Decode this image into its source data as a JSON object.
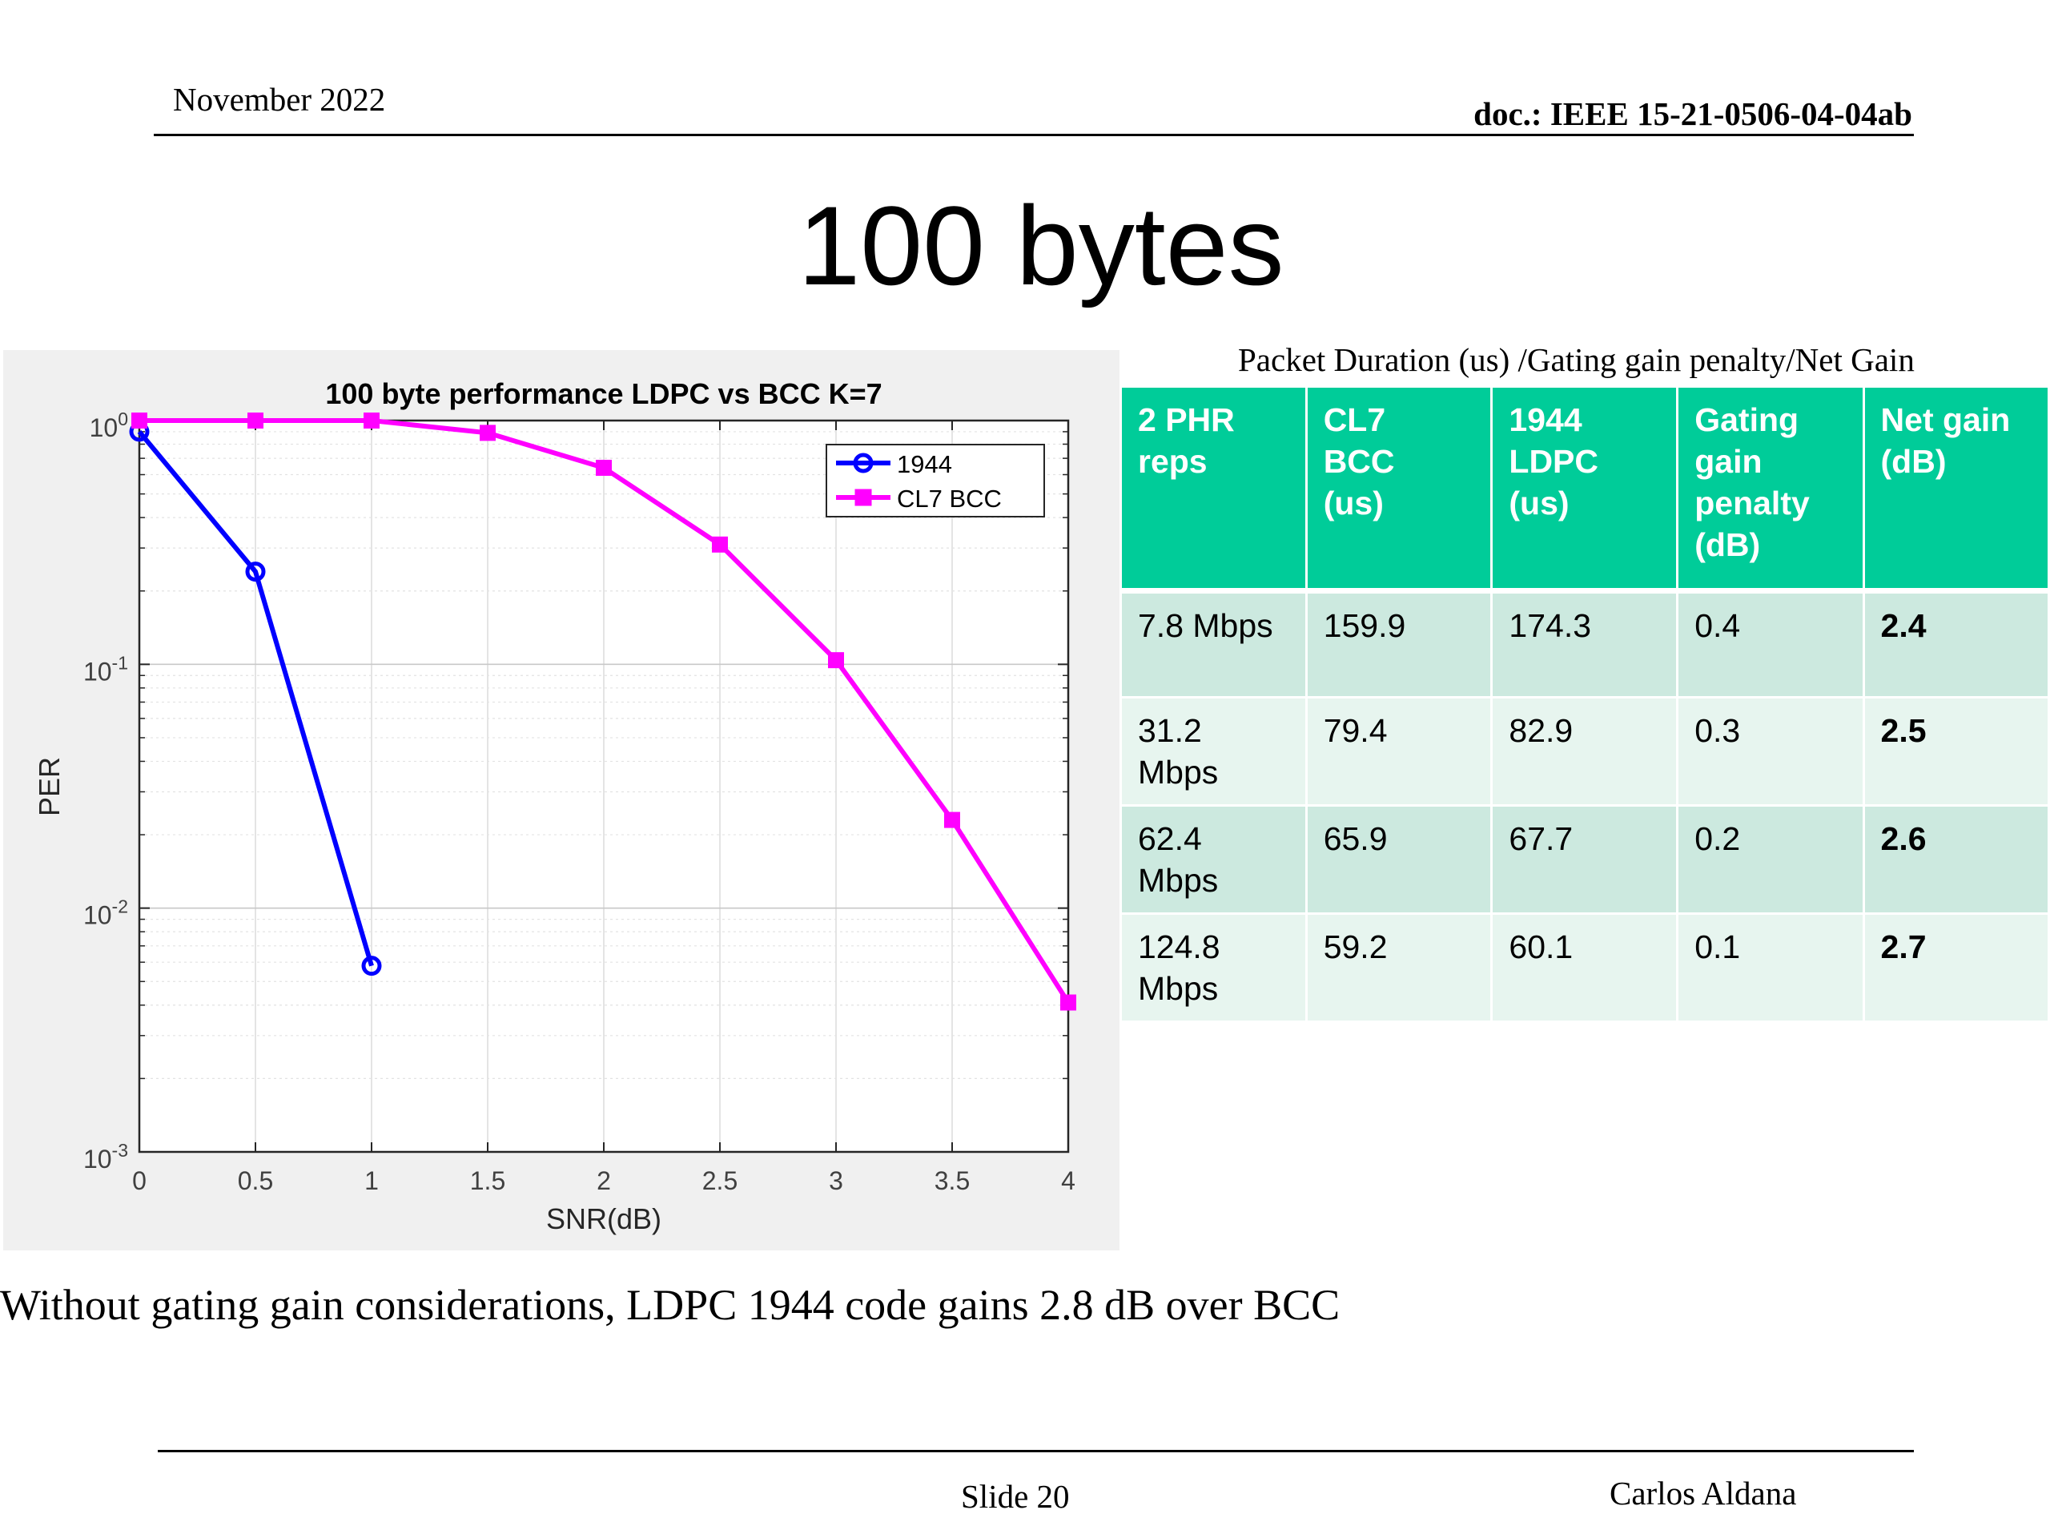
{
  "header": {
    "date": "November 2022",
    "doc_id": "doc.: IEEE 15-21-0506-04-04ab"
  },
  "slide_title": "100 bytes",
  "table": {
    "caption": "Packet Duration (us) /Gating gain penalty/Net Gain",
    "columns": [
      [
        "2 PHR",
        "reps"
      ],
      [
        "CL7",
        "BCC",
        "(us)"
      ],
      [
        "1944",
        "LDPC",
        "(us)"
      ],
      [
        "Gating",
        "gain",
        "penalty",
        "(dB)"
      ],
      [
        "Net gain",
        "(dB)"
      ]
    ],
    "rows": [
      {
        "rate": [
          "7.8 Mbps"
        ],
        "cl7_bcc": "159.9",
        "ldpc_1944": "174.3",
        "gating_penalty": "0.4",
        "net_gain": "2.4"
      },
      {
        "rate": [
          "31.2",
          "Mbps"
        ],
        "cl7_bcc": "79.4",
        "ldpc_1944": "82.9",
        "gating_penalty": "0.3",
        "net_gain": "2.5"
      },
      {
        "rate": [
          "62.4",
          "Mbps"
        ],
        "cl7_bcc": "65.9",
        "ldpc_1944": "67.7",
        "gating_penalty": "0.2",
        "net_gain": "2.6"
      },
      {
        "rate": [
          "124.8",
          "Mbps"
        ],
        "cl7_bcc": "59.2",
        "ldpc_1944": "60.1",
        "gating_penalty": "0.1",
        "net_gain": "2.7"
      }
    ]
  },
  "footnote": "Without gating gain considerations, LDPC 1944 code gains 2.8 dB over BCC",
  "footer": {
    "slide": "Slide 20",
    "author": "Carlos Aldana"
  },
  "chart_data": {
    "type": "line",
    "title": "100 byte performance LDPC vs BCC K=7",
    "xlabel": "SNR(dB)",
    "ylabel": "PER",
    "xlim": [
      0,
      4
    ],
    "ylim": [
      0.001,
      1
    ],
    "yscale": "log",
    "grid": true,
    "legend_position": "top-right",
    "x_ticks": [
      "0",
      "0.5",
      "1",
      "1.5",
      "2",
      "2.5",
      "3",
      "3.5",
      "4"
    ],
    "y_ticks": [
      {
        "value": 1,
        "base": "10",
        "exp": "0"
      },
      {
        "value": 0.1,
        "base": "10",
        "exp": "-1"
      },
      {
        "value": 0.01,
        "base": "10",
        "exp": "-2"
      },
      {
        "value": 0.001,
        "base": "10",
        "exp": "-3"
      }
    ],
    "series": [
      {
        "name": "1944",
        "color": "#0000ff",
        "marker": "circle",
        "x": [
          0,
          0.5,
          1
        ],
        "y": [
          0.9,
          0.24,
          0.0058
        ]
      },
      {
        "name": "CL7 BCC",
        "color": "#ff00ff",
        "marker": "square",
        "x": [
          0,
          0.5,
          1,
          1.5,
          2,
          2.5,
          3,
          3.5,
          4
        ],
        "y": [
          1.0,
          1.0,
          1.0,
          0.89,
          0.64,
          0.31,
          0.104,
          0.023,
          0.0041
        ]
      }
    ]
  }
}
